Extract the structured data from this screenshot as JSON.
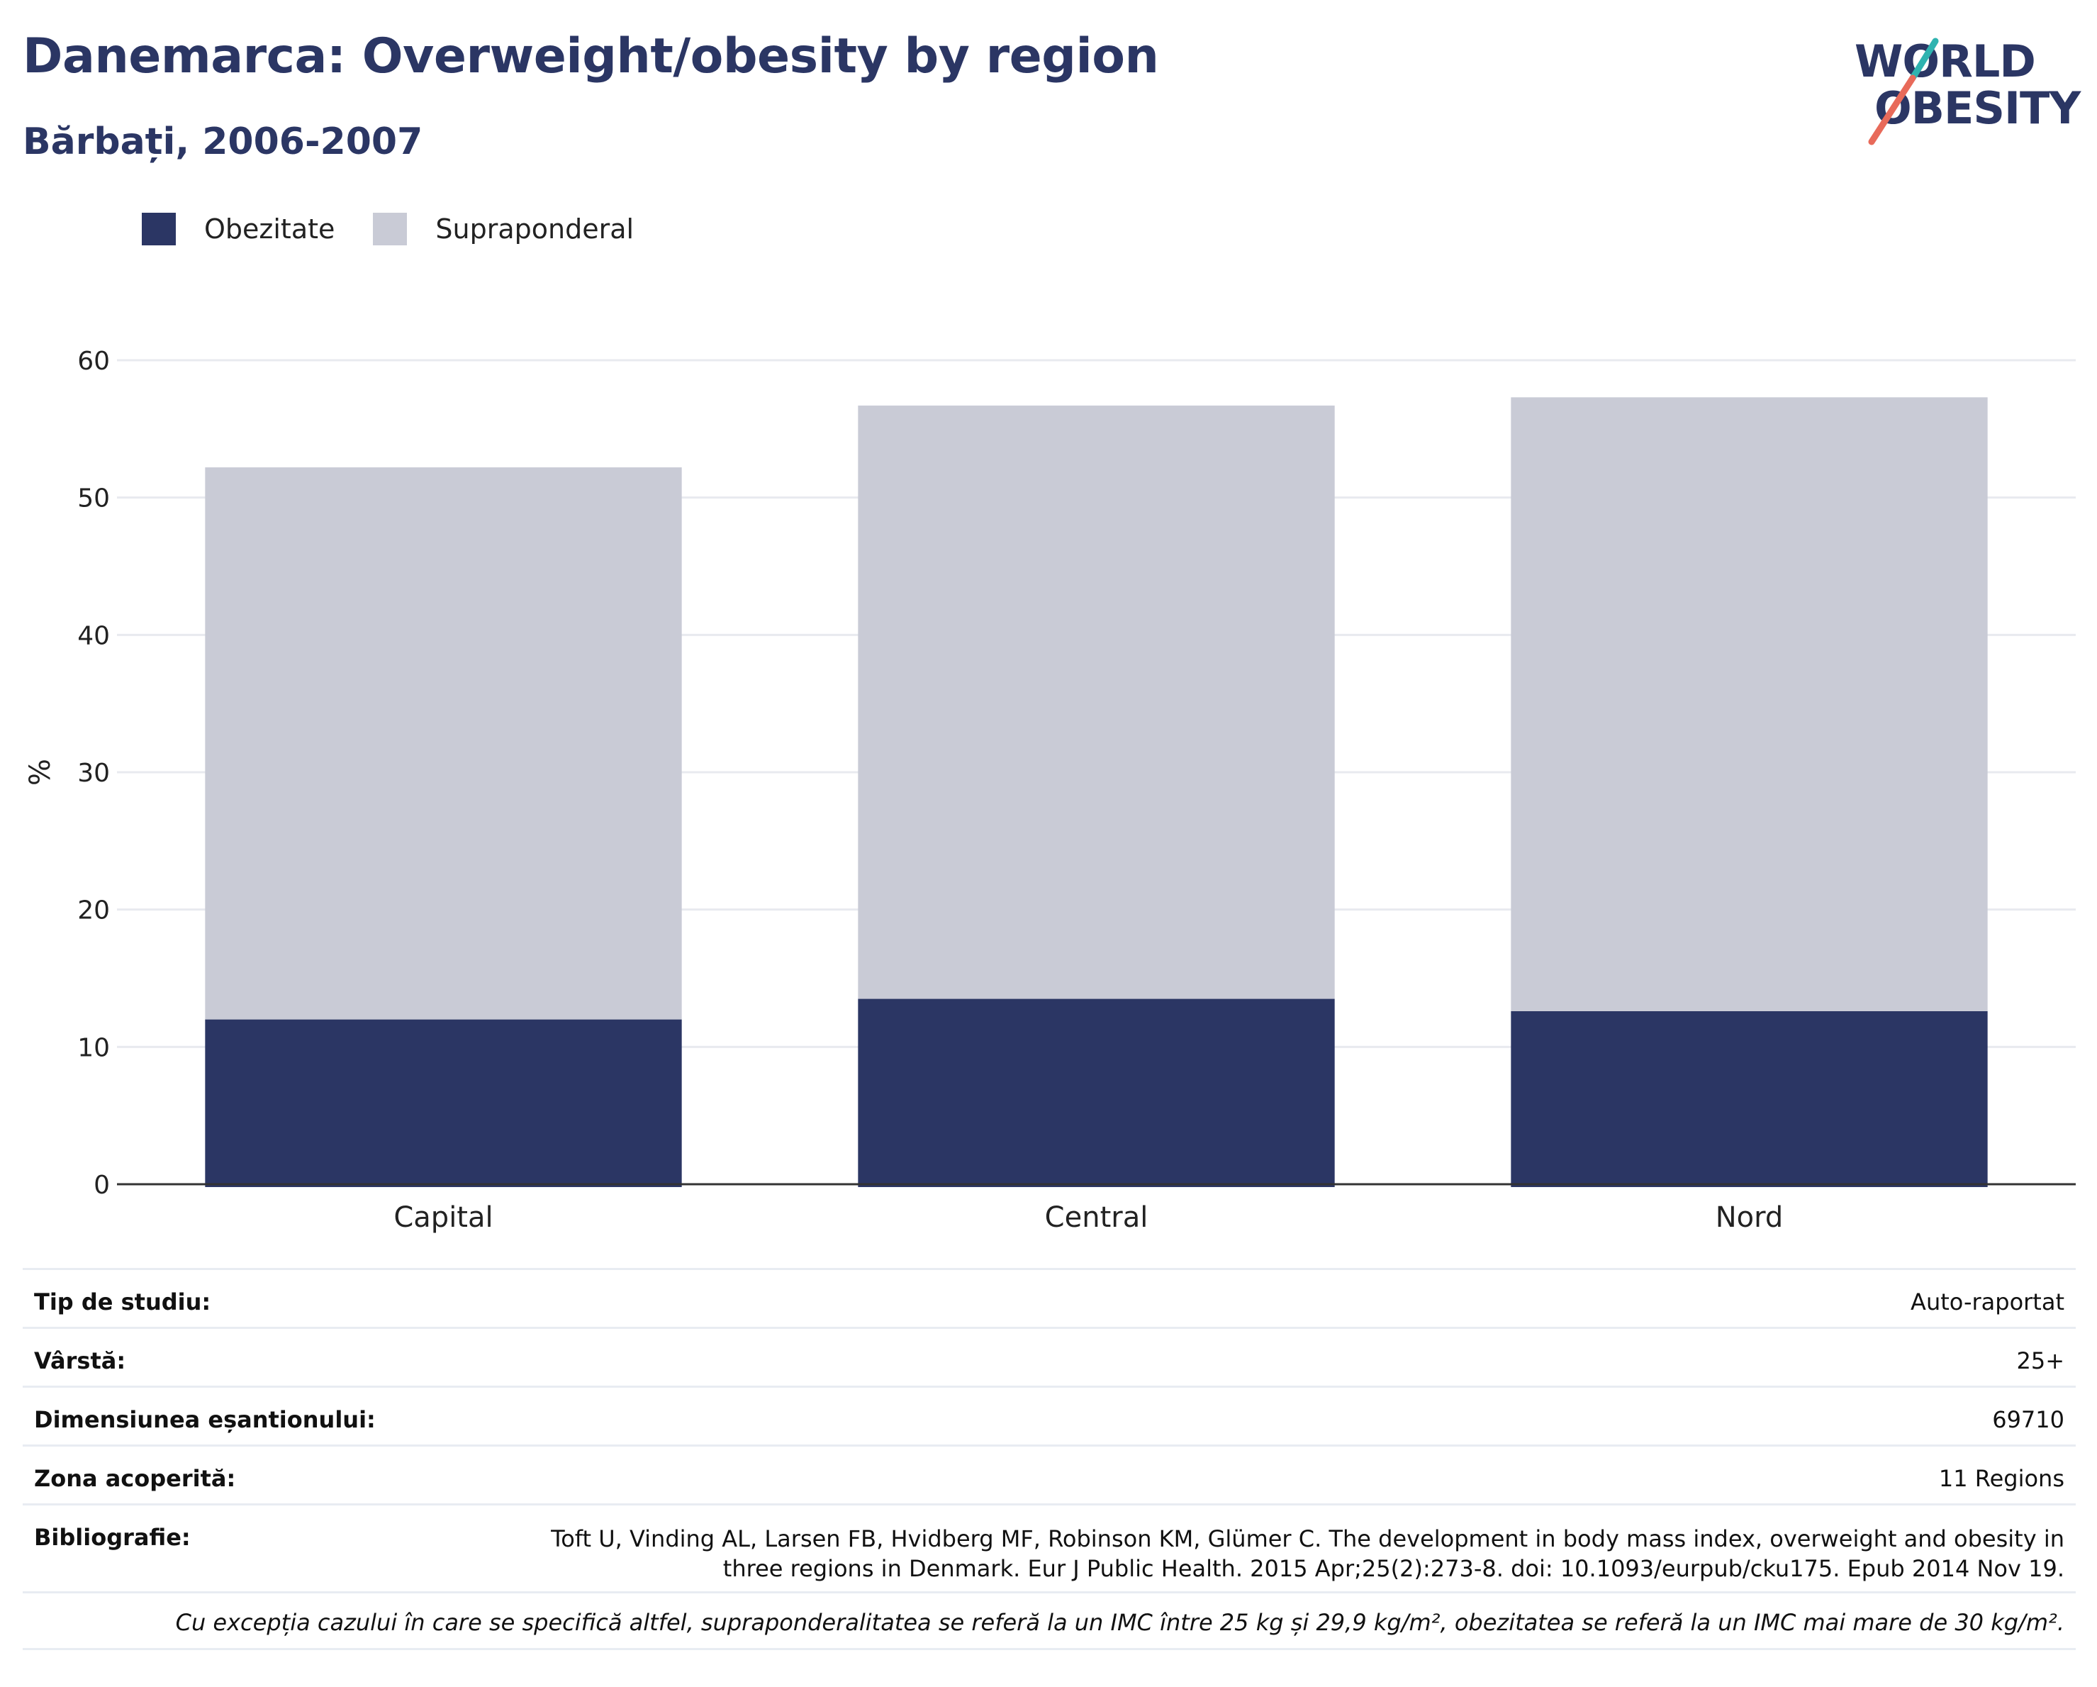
{
  "header": {
    "title": "Danemarca: Overweight/obesity by region",
    "subtitle": "Bărbați, 2006-2007"
  },
  "logo": {
    "line1": "WORLD",
    "line2": "OBESITY",
    "accent_teal": "#2fb3b0",
    "accent_coral": "#e86a5a"
  },
  "colors": {
    "obesity": "#2b3664",
    "overweight": "#c9cbd6",
    "grid": "#e8eaef",
    "axis": "#333333"
  },
  "chart_data": {
    "type": "bar",
    "stacked": true,
    "categories": [
      "Capital",
      "Central",
      "Nord"
    ],
    "series": [
      {
        "name": "Obezitate",
        "values": [
          12.0,
          13.5,
          12.6
        ]
      },
      {
        "name": "Supraponderal",
        "values": [
          40.2,
          43.2,
          44.7
        ]
      }
    ],
    "ylabel": "%",
    "ylim": [
      0,
      60
    ],
    "yticks": [
      0,
      10,
      20,
      30,
      40,
      50,
      60
    ],
    "grid": true,
    "legend_position": "top-left"
  },
  "info": {
    "rows": [
      {
        "label": "Tip de studiu:",
        "value": "Auto-raportat"
      },
      {
        "label": "Vârstă:",
        "value": "25+"
      },
      {
        "label": "Dimensiunea eșantionului:",
        "value": "69710"
      },
      {
        "label": "Zona acoperită:",
        "value": "11 Regions"
      }
    ],
    "bibliography": {
      "label": "Bibliografie:",
      "value": "Toft U, Vinding AL, Larsen FB, Hvidberg MF, Robinson KM, Glümer C. The development in body mass index, overweight and obesity in three regions in Denmark. Eur J Public Health. 2015 Apr;25(2):273-8. doi: 10.1093/eurpub/cku175. Epub 2014 Nov 19."
    },
    "note": "Cu excepția cazului în care se specifică altfel, supraponderalitatea se referă la un IMC între 25 kg și 29,9 kg/m², obezitatea se referă la un IMC mai mare de 30 kg/m²."
  }
}
